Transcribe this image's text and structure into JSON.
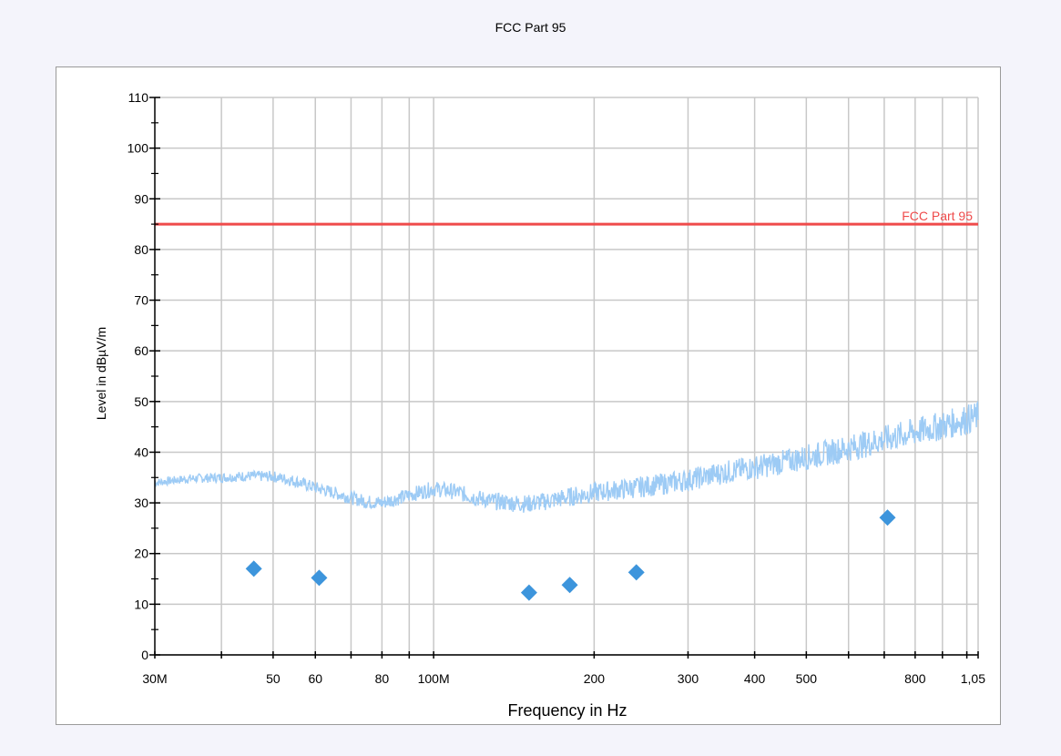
{
  "chart_data": {
    "type": "scatter",
    "title": "FCC Part 95",
    "xlabel": "Frequency in Hz",
    "ylabel": "Level in dBµV/m",
    "x_scale": "log",
    "xlim": [
      30000000,
      1050000000
    ],
    "ylim": [
      0,
      110
    ],
    "grid": true,
    "x_ticks": [
      {
        "value": 30000000,
        "label": "30M"
      },
      {
        "value": 50000000,
        "label": "50"
      },
      {
        "value": 60000000,
        "label": "60"
      },
      {
        "value": 80000000,
        "label": "80"
      },
      {
        "value": 100000000,
        "label": "100M"
      },
      {
        "value": 200000000,
        "label": "200"
      },
      {
        "value": 300000000,
        "label": "300"
      },
      {
        "value": 400000000,
        "label": "400"
      },
      {
        "value": 500000000,
        "label": "500"
      },
      {
        "value": 800000000,
        "label": "800"
      },
      {
        "value": 1050000000,
        "label": "1,05"
      }
    ],
    "y_ticks": [
      0,
      10,
      20,
      30,
      40,
      50,
      60,
      70,
      80,
      90,
      100,
      110
    ],
    "limit_line": {
      "name": "FCC Part 95",
      "value": 85,
      "color": "#ef4b4b"
    },
    "trace": {
      "color": "#9dcbf5",
      "points": [
        [
          30000000,
          34
        ],
        [
          35000000,
          34.8
        ],
        [
          40000000,
          35
        ],
        [
          45000000,
          35.3
        ],
        [
          50000000,
          35.2
        ],
        [
          55000000,
          34.3
        ],
        [
          60000000,
          33
        ],
        [
          65000000,
          32
        ],
        [
          70000000,
          31
        ],
        [
          75000000,
          30.2
        ],
        [
          80000000,
          30
        ],
        [
          85000000,
          30.8
        ],
        [
          90000000,
          31.5
        ],
        [
          95000000,
          32.2
        ],
        [
          100000000,
          32.8
        ],
        [
          110000000,
          32.2
        ],
        [
          120000000,
          31
        ],
        [
          130000000,
          30.3
        ],
        [
          140000000,
          30
        ],
        [
          150000000,
          29.8
        ],
        [
          160000000,
          30.2
        ],
        [
          180000000,
          31.2
        ],
        [
          200000000,
          32
        ],
        [
          230000000,
          32.8
        ],
        [
          260000000,
          33.5
        ],
        [
          300000000,
          34.5
        ],
        [
          350000000,
          36
        ],
        [
          400000000,
          37
        ],
        [
          450000000,
          38
        ],
        [
          500000000,
          39
        ],
        [
          600000000,
          40.8
        ],
        [
          700000000,
          42.5
        ],
        [
          800000000,
          44
        ],
        [
          900000000,
          45.2
        ],
        [
          1000000000,
          46.5
        ],
        [
          1050000000,
          47
        ]
      ]
    },
    "series": [
      {
        "color": "#3d95dc",
        "marker": "diamond",
        "x": [
          46000000,
          61000000,
          151000000,
          180000000,
          240000000,
          710000000
        ],
        "y": [
          17,
          15.2,
          12.3,
          13.8,
          16.3,
          27.1
        ]
      }
    ]
  }
}
